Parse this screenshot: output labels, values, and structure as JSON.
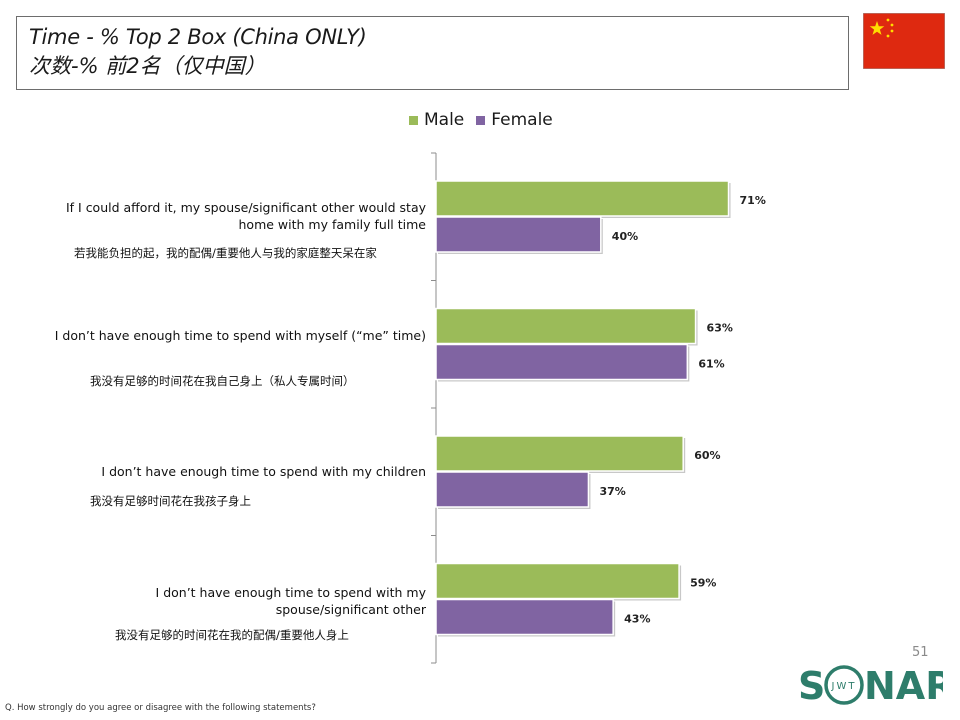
{
  "header": {
    "title_en": "Time - % Top 2 Box (China ONLY)",
    "title_zh": "次数-% 前2名（仅中国）"
  },
  "chart_data": {
    "type": "bar",
    "orientation": "horizontal",
    "categories": [
      "If I could afford it, my spouse/significant other would stay home with my family full time",
      "I don’t have enough time to spend with myself (“me” time)",
      "I don’t have enough time to spend with my children",
      "I don’t have enough time to spend with my spouse/significant other"
    ],
    "categories_zh": [
      "若我能负担的起，我的配偶/重要他人与我的家庭整天呆在家",
      "我没有足够的时间花在我自己身上（私人专属时间）",
      "我没有足够时间花在我孩子身上",
      "我没有足够的时间花在我的配偶/重要他人身上"
    ],
    "series": [
      {
        "name": "Male",
        "values": [
          71,
          63,
          60,
          59
        ],
        "labels": [
          "71%",
          "63%",
          "60%",
          "59%"
        ],
        "color": "#9bbb59"
      },
      {
        "name": "Female",
        "values": [
          40,
          61,
          37,
          43
        ],
        "labels": [
          "40%",
          "61%",
          "37%",
          "43%"
        ],
        "color": "#8064a2"
      }
    ],
    "xlim": [
      0,
      100
    ],
    "legend": "top"
  },
  "footer": {
    "page_number": "51",
    "footnote": "Q. How strongly do you agree or disagree with the following statements?",
    "logo_text": "SONAR",
    "logo_sub": "JWT"
  }
}
